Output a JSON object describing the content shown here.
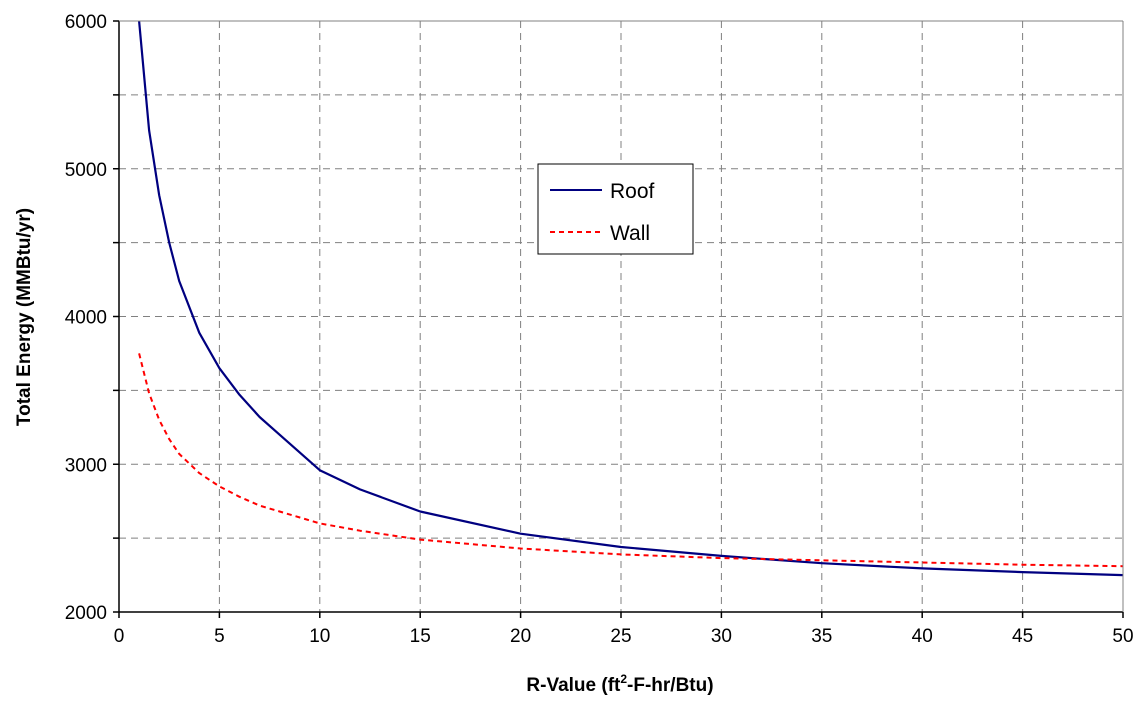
{
  "chart_data": {
    "type": "line",
    "title": "",
    "xlabel": {
      "main": "R-Value (ft",
      "sup": "2",
      "rest": "-F-hr/Btu)"
    },
    "ylabel": "Total Energy (MMBtu/yr)",
    "xlim": [
      0,
      50
    ],
    "ylim": [
      2000,
      6000
    ],
    "xticks": [
      0,
      5,
      10,
      15,
      20,
      25,
      30,
      35,
      40,
      45,
      50
    ],
    "yticks": [
      2000,
      3000,
      4000,
      5000,
      6000
    ],
    "grid": true,
    "legend_position": "upper-center",
    "series": [
      {
        "name": "Roof",
        "color": "#000080",
        "style": "solid",
        "x": [
          1,
          1.5,
          2,
          2.5,
          3,
          4,
          5,
          6,
          7,
          8,
          10,
          12,
          15,
          20,
          25,
          30,
          35,
          40,
          45,
          50
        ],
        "y": [
          6000,
          5260,
          4820,
          4500,
          4240,
          3890,
          3650,
          3470,
          3320,
          3200,
          2960,
          2830,
          2680,
          2530,
          2440,
          2380,
          2330,
          2295,
          2270,
          2250
        ]
      },
      {
        "name": "Wall",
        "color": "#ff0000",
        "style": "dashed",
        "x": [
          1,
          1.5,
          2,
          2.5,
          3,
          4,
          5,
          6,
          7,
          8,
          10,
          12,
          15,
          20,
          25,
          30,
          35,
          40,
          45,
          50
        ],
        "y": [
          3750,
          3480,
          3300,
          3170,
          3070,
          2940,
          2850,
          2780,
          2720,
          2680,
          2600,
          2550,
          2490,
          2430,
          2390,
          2365,
          2350,
          2335,
          2320,
          2310
        ]
      }
    ]
  }
}
